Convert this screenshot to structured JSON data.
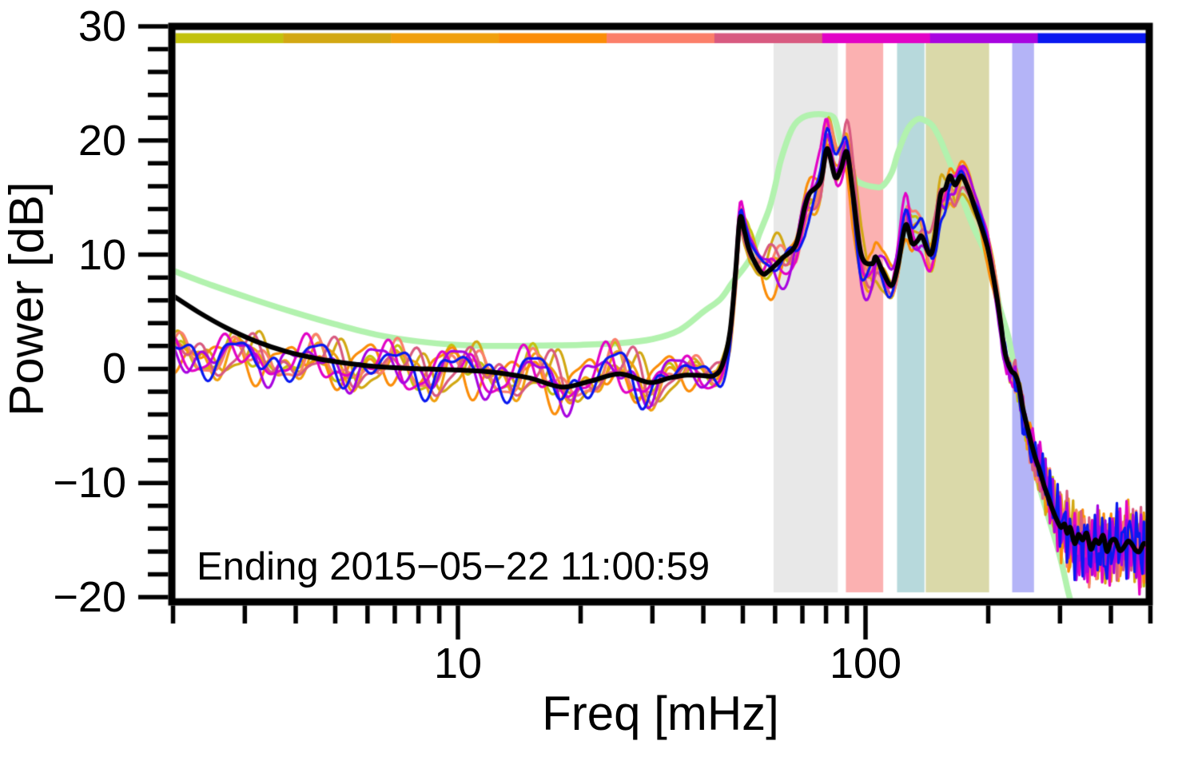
{
  "figure": {
    "kind": "ensemble power spectral density plot",
    "background": "#ffffff",
    "frame_color": "#000000"
  },
  "annotation": {
    "text": "Ending 2015−05−22 11:00:59"
  },
  "axes": {
    "x": {
      "label": "Freq [mHz]",
      "scale": "log",
      "min": 2,
      "max": 500,
      "major_ticks": [
        {
          "f": 10,
          "label": "10"
        },
        {
          "f": 100,
          "label": "100"
        }
      ],
      "minor_ticks": [
        2,
        3,
        4,
        5,
        6,
        7,
        8,
        9,
        20,
        30,
        40,
        50,
        60,
        70,
        80,
        90,
        200,
        300,
        400,
        500
      ]
    },
    "y": {
      "label": "Power [dB]",
      "min": -20,
      "max": 30,
      "major_ticks": [
        {
          "v": 30,
          "label": "30"
        },
        {
          "v": 20,
          "label": "20"
        },
        {
          "v": 10,
          "label": "10"
        },
        {
          "v": 0,
          "label": "0"
        },
        {
          "v": -10,
          "label": "−10"
        },
        {
          "v": -20,
          "label": "−20"
        }
      ],
      "minor_step": 2
    }
  },
  "top_color_bar": {
    "segment_colors": [
      "#c2c20e",
      "#d2a813",
      "#f0a00e",
      "#fb8d09",
      "#fb7f6a",
      "#d85a80",
      "#e203c6",
      "#a805e0",
      "#0a19f0"
    ]
  },
  "shaded_bands": [
    {
      "name": "band-gray",
      "color": "#e8e8e8",
      "f1": 59.5,
      "f2": 85.5
    },
    {
      "name": "band-pink",
      "color": "#fbb1b1",
      "f1": 89.5,
      "f2": 110.5
    },
    {
      "name": "band-teal",
      "color": "#b7d9dc",
      "f1": 119.5,
      "f2": 139.5
    },
    {
      "name": "band-khaki",
      "color": "#dad9a9",
      "f1": 140.5,
      "f2": 201
    },
    {
      "name": "band-lavender",
      "color": "#b4b4f7",
      "f1": 229,
      "f2": 259
    }
  ],
  "chart_data": {
    "type": "line",
    "title": "",
    "xlabel": "Freq [mHz]",
    "ylabel": "Power [dB]",
    "xlim": [
      2,
      500
    ],
    "ylim": [
      -20,
      30
    ],
    "x_units": "mHz",
    "grid": false,
    "legend": "none (color bar strip at top maps member colors)",
    "mean_line": {
      "name": "ensemble-mean",
      "color": "#000000",
      "width": 6,
      "points": [
        [
          2,
          6.4
        ],
        [
          2.3,
          5.0
        ],
        [
          2.7,
          3.6
        ],
        [
          3.2,
          2.4
        ],
        [
          3.8,
          1.5
        ],
        [
          4.5,
          0.9
        ],
        [
          5.3,
          0.5
        ],
        [
          6.3,
          0.2
        ],
        [
          7.5,
          0.05
        ],
        [
          9,
          -0.05
        ],
        [
          10.6,
          -0.15
        ],
        [
          12.6,
          -0.35
        ],
        [
          15,
          -0.8
        ],
        [
          18,
          -1.6
        ],
        [
          21,
          -1.1
        ],
        [
          25,
          -0.45
        ],
        [
          29.5,
          -1.2
        ],
        [
          33,
          -0.8
        ],
        [
          36.5,
          -0.55
        ],
        [
          40,
          -0.6
        ],
        [
          42.5,
          -0.6
        ],
        [
          44.5,
          0.3
        ],
        [
          46.5,
          3.2
        ],
        [
          48,
          8.5
        ],
        [
          49.2,
          13.2
        ],
        [
          50.5,
          12.0
        ],
        [
          52,
          10.3
        ],
        [
          55.6,
          8.4
        ],
        [
          58,
          8.6
        ],
        [
          62.5,
          9.7
        ],
        [
          67.5,
          10.9
        ],
        [
          71,
          14.2
        ],
        [
          73,
          15.4
        ],
        [
          77.6,
          16.4
        ],
        [
          80.5,
          19.3
        ],
        [
          84.2,
          16.8
        ],
        [
          87,
          17.5
        ],
        [
          90,
          19.0
        ],
        [
          93,
          15.5
        ],
        [
          97.6,
          10.0
        ],
        [
          103.7,
          9.2
        ],
        [
          106,
          9.8
        ],
        [
          110,
          8.6
        ],
        [
          115.7,
          7.3
        ],
        [
          120,
          9.0
        ],
        [
          125.4,
          12.6
        ],
        [
          130,
          11.0
        ],
        [
          134,
          11.2
        ],
        [
          137.5,
          11.6
        ],
        [
          144,
          10.0
        ],
        [
          148,
          11.5
        ],
        [
          152.6,
          15.2
        ],
        [
          157,
          15.8
        ],
        [
          161,
          16.9
        ],
        [
          166,
          16.1
        ],
        [
          172,
          16.9
        ],
        [
          179,
          15.7
        ],
        [
          185,
          14.2
        ],
        [
          190,
          13.0
        ],
        [
          199,
          10.7
        ],
        [
          206,
          8.0
        ],
        [
          211,
          5.8
        ],
        [
          215,
          3.8
        ],
        [
          218,
          2.2
        ],
        [
          222,
          0.8
        ],
        [
          228,
          -0.2
        ],
        [
          233,
          -0.5
        ],
        [
          238,
          -1.5
        ],
        [
          243,
          -3.4
        ],
        [
          249,
          -5.0
        ],
        [
          255,
          -6.5
        ],
        [
          261,
          -7.8
        ],
        [
          268,
          -9.0
        ],
        [
          274,
          -10.2
        ],
        [
          281,
          -11.3
        ],
        [
          288,
          -12.4
        ],
        [
          296,
          -13.4
        ],
        [
          302,
          -13.9
        ],
        [
          308,
          -13.6
        ],
        [
          312,
          -14.4
        ],
        [
          318,
          -13.9
        ],
        [
          326,
          -15.3
        ],
        [
          333,
          -14.5
        ],
        [
          341,
          -15.0
        ],
        [
          349,
          -14.4
        ],
        [
          357,
          -15.8
        ],
        [
          366,
          -15.0
        ],
        [
          374,
          -15.3
        ],
        [
          383,
          -14.6
        ],
        [
          391,
          -16.0
        ],
        [
          400,
          -15.1
        ],
        [
          410,
          -15.0
        ],
        [
          420,
          -15.9
        ],
        [
          429,
          -15.7
        ],
        [
          440,
          -15.1
        ],
        [
          449,
          -15.3
        ],
        [
          460,
          -15.9
        ],
        [
          470,
          -16.0
        ],
        [
          482,
          -15.3
        ],
        [
          494,
          -15.5
        ]
      ]
    },
    "smooth_line": {
      "name": "smoothed-reference",
      "color": "#b2f2ae",
      "width": 7.5,
      "points": [
        [
          2,
          8.6
        ],
        [
          2.5,
          7.3
        ],
        [
          3.2,
          6.0
        ],
        [
          4,
          4.9
        ],
        [
          5,
          3.9
        ],
        [
          6.3,
          3.0
        ],
        [
          8,
          2.4
        ],
        [
          10,
          2.1
        ],
        [
          12.6,
          2.0
        ],
        [
          16,
          2.05
        ],
        [
          20,
          2.1
        ],
        [
          25,
          2.25
        ],
        [
          30,
          2.6
        ],
        [
          35,
          3.4
        ],
        [
          40,
          5.0
        ],
        [
          44,
          6.1
        ],
        [
          47,
          7.5
        ],
        [
          52,
          9.6
        ],
        [
          55,
          11.9
        ],
        [
          58,
          14.0
        ],
        [
          60,
          16.0
        ],
        [
          62,
          18.3
        ],
        [
          66,
          21.0
        ],
        [
          70,
          22.0
        ],
        [
          75,
          22.3
        ],
        [
          80,
          22.25
        ],
        [
          84,
          21.9
        ],
        [
          87,
          19.8
        ],
        [
          91,
          17.5
        ],
        [
          95,
          16.5
        ],
        [
          100,
          16.1
        ],
        [
          105,
          15.95
        ],
        [
          110,
          16.0
        ],
        [
          116,
          17.2
        ],
        [
          120,
          18.9
        ],
        [
          126,
          20.8
        ],
        [
          130,
          21.5
        ],
        [
          135,
          21.9
        ],
        [
          141,
          21.7
        ],
        [
          146,
          21.3
        ],
        [
          152,
          20.2
        ],
        [
          157,
          19.0
        ],
        [
          163,
          17.6
        ],
        [
          170,
          15.7
        ],
        [
          177,
          13.9
        ],
        [
          183,
          12.6
        ],
        [
          192,
          11.0
        ],
        [
          200,
          9.6
        ],
        [
          208,
          7.6
        ],
        [
          213,
          5.5
        ],
        [
          224,
          2.8
        ],
        [
          233,
          -0.5
        ],
        [
          243,
          -4.0
        ],
        [
          255,
          -7.5
        ],
        [
          268,
          -10.5
        ],
        [
          281,
          -13.0
        ],
        [
          295,
          -15.5
        ],
        [
          305,
          -17.5
        ],
        [
          313,
          -19.3
        ],
        [
          320,
          -20.6
        ]
      ]
    },
    "member_base_points": [
      [
        2,
        1.5
      ],
      [
        2.5,
        1.2
      ],
      [
        3.2,
        0.9
      ],
      [
        4,
        0.6
      ],
      [
        5,
        0.4
      ],
      [
        6.3,
        0.2
      ],
      [
        8,
        0.0
      ],
      [
        10,
        -0.1
      ],
      [
        12.6,
        -0.3
      ],
      [
        15,
        -0.6
      ],
      [
        18,
        -1.2
      ],
      [
        21,
        -0.9
      ],
      [
        25,
        -0.4
      ],
      [
        29.5,
        -1.0
      ],
      [
        33,
        -0.7
      ],
      [
        36.5,
        -0.5
      ],
      [
        40,
        -0.5
      ],
      [
        42.5,
        -0.5
      ],
      [
        44.5,
        0.3
      ],
      [
        46.5,
        3.2
      ],
      [
        48,
        8.5
      ],
      [
        49.2,
        13.2
      ],
      [
        50.5,
        12.0
      ],
      [
        52,
        10.3
      ],
      [
        55.6,
        8.4
      ],
      [
        58,
        8.6
      ],
      [
        62.5,
        9.7
      ],
      [
        67.5,
        10.9
      ],
      [
        71,
        14.2
      ],
      [
        73,
        15.4
      ],
      [
        77.6,
        16.4
      ],
      [
        80.5,
        19.3
      ],
      [
        84.2,
        16.8
      ],
      [
        87,
        17.5
      ],
      [
        90,
        19.0
      ],
      [
        93,
        15.5
      ],
      [
        97.6,
        10.0
      ],
      [
        103.7,
        9.2
      ],
      [
        106,
        9.8
      ],
      [
        110,
        8.6
      ],
      [
        115.7,
        7.3
      ],
      [
        120,
        9.0
      ],
      [
        125.4,
        12.6
      ],
      [
        130,
        11.0
      ],
      [
        134,
        11.2
      ],
      [
        137.5,
        11.6
      ],
      [
        144,
        10.0
      ],
      [
        148,
        11.5
      ],
      [
        152.6,
        15.2
      ],
      [
        157,
        15.8
      ],
      [
        161,
        16.9
      ],
      [
        166,
        16.1
      ],
      [
        172,
        16.9
      ],
      [
        179,
        15.7
      ],
      [
        185,
        14.2
      ],
      [
        190,
        13.0
      ],
      [
        199,
        10.7
      ],
      [
        206,
        8.0
      ],
      [
        211,
        5.8
      ],
      [
        215,
        3.8
      ],
      [
        218,
        2.2
      ],
      [
        222,
        0.8
      ],
      [
        228,
        -0.2
      ],
      [
        233,
        -0.5
      ],
      [
        238,
        -1.5
      ],
      [
        243,
        -3.4
      ],
      [
        249,
        -5.0
      ],
      [
        255,
        -6.5
      ],
      [
        261,
        -7.8
      ],
      [
        268,
        -9.0
      ],
      [
        274,
        -10.2
      ],
      [
        281,
        -11.3
      ],
      [
        288,
        -12.4
      ],
      [
        296,
        -13.4
      ],
      [
        302,
        -13.9
      ],
      [
        312,
        -14.4
      ],
      [
        326,
        -15.3
      ],
      [
        341,
        -15.0
      ],
      [
        357,
        -15.8
      ],
      [
        374,
        -15.3
      ],
      [
        391,
        -16.0
      ],
      [
        410,
        -15.0
      ],
      [
        429,
        -15.7
      ],
      [
        449,
        -15.3
      ],
      [
        470,
        -16.0
      ],
      [
        494,
        -15.5
      ]
    ],
    "members": [
      {
        "name": "member-1-olive",
        "color": "#c2c20e",
        "seed": 3
      },
      {
        "name": "member-2-gold",
        "color": "#d2a813",
        "seed": 14
      },
      {
        "name": "member-3-orange-gold",
        "color": "#f0a00e",
        "seed": 25
      },
      {
        "name": "member-4-orange",
        "color": "#fb8d09",
        "seed": 36
      },
      {
        "name": "member-5-salmon",
        "color": "#fb7f6a",
        "seed": 47
      },
      {
        "name": "member-6-raspberry",
        "color": "#d85a80",
        "seed": 58
      },
      {
        "name": "member-7-magenta",
        "color": "#e203c6",
        "seed": 69
      },
      {
        "name": "member-8-purple",
        "color": "#a805e0",
        "seed": 80
      },
      {
        "name": "member-9-blue",
        "color": "#0a19f0",
        "seed": 91
      }
    ],
    "member_line_width": 3.2,
    "member_variation": {
      "smooth_amp_envelope": [
        [
          0.301,
          2.2
        ],
        [
          0.9,
          2.7
        ],
        [
          1.45,
          2.9
        ],
        [
          1.62,
          1.6
        ],
        [
          1.69,
          1.9
        ],
        [
          1.78,
          2.8
        ],
        [
          1.95,
          3.3
        ],
        [
          2.15,
          2.7
        ],
        [
          2.3,
          1.8
        ],
        [
          2.42,
          1.2
        ],
        [
          2.699,
          1.0
        ]
      ],
      "floor_noise_envelope": [
        [
          0.301,
          0
        ],
        [
          2.32,
          0
        ],
        [
          2.4,
          1.4
        ],
        [
          2.48,
          3.0
        ],
        [
          2.699,
          3.6
        ]
      ],
      "smooth_freqs_per_decade": [
        5.5,
        9.5,
        15
      ],
      "smooth_weights": [
        0.5,
        0.33,
        0.22
      ],
      "floor_freqs_per_decade": [
        55,
        110
      ],
      "floor_weights": [
        0.55,
        0.45
      ]
    }
  }
}
